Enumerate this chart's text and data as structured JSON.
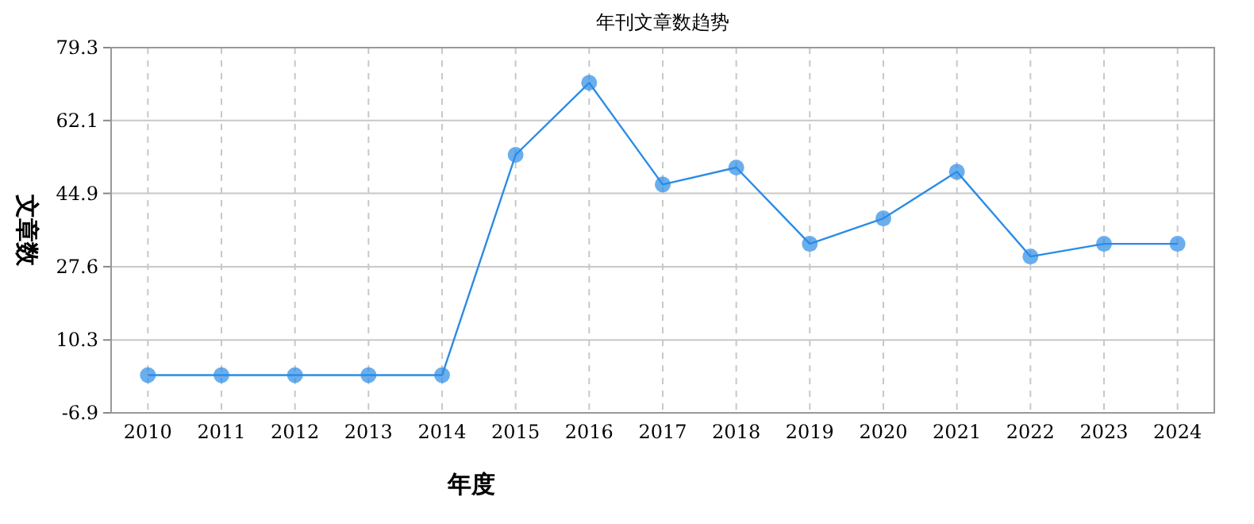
{
  "chart_data": {
    "type": "line",
    "title": "年刊文章数趋势",
    "xlabel": "年度",
    "ylabel": "文章数",
    "categories": [
      "2010",
      "2011",
      "2012",
      "2013",
      "2014",
      "2015",
      "2016",
      "2017",
      "2018",
      "2019",
      "2020",
      "2021",
      "2022",
      "2023",
      "2024"
    ],
    "series": [
      {
        "color": "#2b8ce6",
        "values": [
          2,
          2,
          2,
          2,
          2,
          54,
          71,
          47,
          51,
          33,
          39,
          50,
          30,
          33,
          33
        ]
      }
    ],
    "ylim": [
      -6.9,
      79.3
    ],
    "yticks": [
      -6.9,
      10.3,
      27.6,
      44.9,
      62.1,
      79.3
    ],
    "grid": true,
    "marker": "circle",
    "line_style": "solid"
  }
}
